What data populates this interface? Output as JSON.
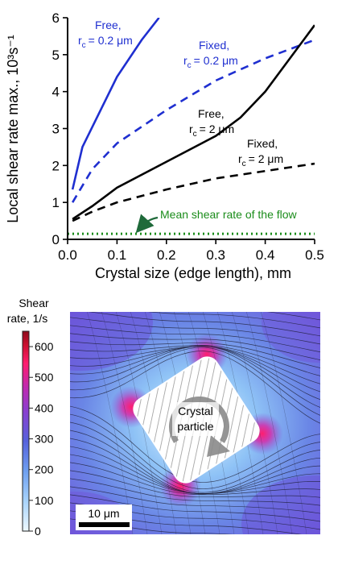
{
  "chart_data": [
    {
      "type": "line",
      "title": "",
      "xlabel": "Crystal size (edge length), mm",
      "ylabel": "Local shear rate max., 10³s⁻¹",
      "xlim": [
        0.0,
        0.5
      ],
      "ylim": [
        0,
        6
      ],
      "xticks": [
        "0.0",
        "0.1",
        "0.2",
        "0.3",
        "0.4",
        "0.5"
      ],
      "yticks": [
        "0",
        "1",
        "2",
        "3",
        "4",
        "5",
        "6"
      ],
      "grid": false,
      "series": [
        {
          "name": "Free, r_c = 0.2 μm",
          "label_lines": [
            "Free,",
            "r",
            "= 0.2 μm"
          ],
          "color": "#1f2fd0",
          "style": "solid",
          "x": [
            0.01,
            0.03,
            0.1,
            0.15,
            0.185
          ],
          "y": [
            1.35,
            2.5,
            4.4,
            5.4,
            6.0
          ]
        },
        {
          "name": "Fixed, r_c = 0.2 μm",
          "label_lines": [
            "Fixed,",
            "r",
            "= 0.2 μm"
          ],
          "color": "#1f2fd0",
          "style": "dashed",
          "x": [
            0.01,
            0.05,
            0.1,
            0.2,
            0.3,
            0.4,
            0.5
          ],
          "y": [
            1.0,
            1.9,
            2.6,
            3.5,
            4.3,
            4.9,
            5.4
          ]
        },
        {
          "name": "Free, r_c = 2 μm",
          "label_lines": [
            "Free,",
            "r",
            "= 2 μm"
          ],
          "color": "#000000",
          "style": "solid",
          "x": [
            0.01,
            0.05,
            0.1,
            0.2,
            0.3,
            0.35,
            0.4,
            0.5
          ],
          "y": [
            0.55,
            0.9,
            1.4,
            2.1,
            2.8,
            3.3,
            4.0,
            5.8
          ]
        },
        {
          "name": "Fixed, r_c = 2 μm",
          "label_lines": [
            "Fixed,",
            "r",
            "= 2 μm"
          ],
          "color": "#000000",
          "style": "dashed",
          "x": [
            0.01,
            0.05,
            0.1,
            0.2,
            0.3,
            0.4,
            0.5
          ],
          "y": [
            0.5,
            0.75,
            1.0,
            1.35,
            1.65,
            1.85,
            2.05
          ]
        },
        {
          "name": "Mean shear rate of the flow",
          "color": "#1a8c1a",
          "style": "dotted",
          "x": [
            0.0,
            0.5
          ],
          "y": [
            0.15,
            0.15
          ]
        }
      ],
      "annotations": {
        "mean_label": "Mean shear rate of the flow",
        "subscript": "c"
      }
    },
    {
      "type": "heatmap",
      "colorbar": {
        "title_line1": "Shear",
        "title_line2": "rate, 1/s",
        "ticks": [
          "0",
          "100",
          "200",
          "300",
          "400",
          "500",
          "600"
        ],
        "range": [
          0,
          650
        ],
        "colors": [
          "#eef8ff",
          "#7ab8f5",
          "#5b6de0",
          "#8a3fd0",
          "#c02ab0",
          "#ff1d6e",
          "#cc1030",
          "#8e0a1a"
        ]
      },
      "particle_label_line1": "Crystal",
      "particle_label_line2": "particle",
      "scalebar_label": "10 μm",
      "scalebar_value_um": 10
    }
  ]
}
